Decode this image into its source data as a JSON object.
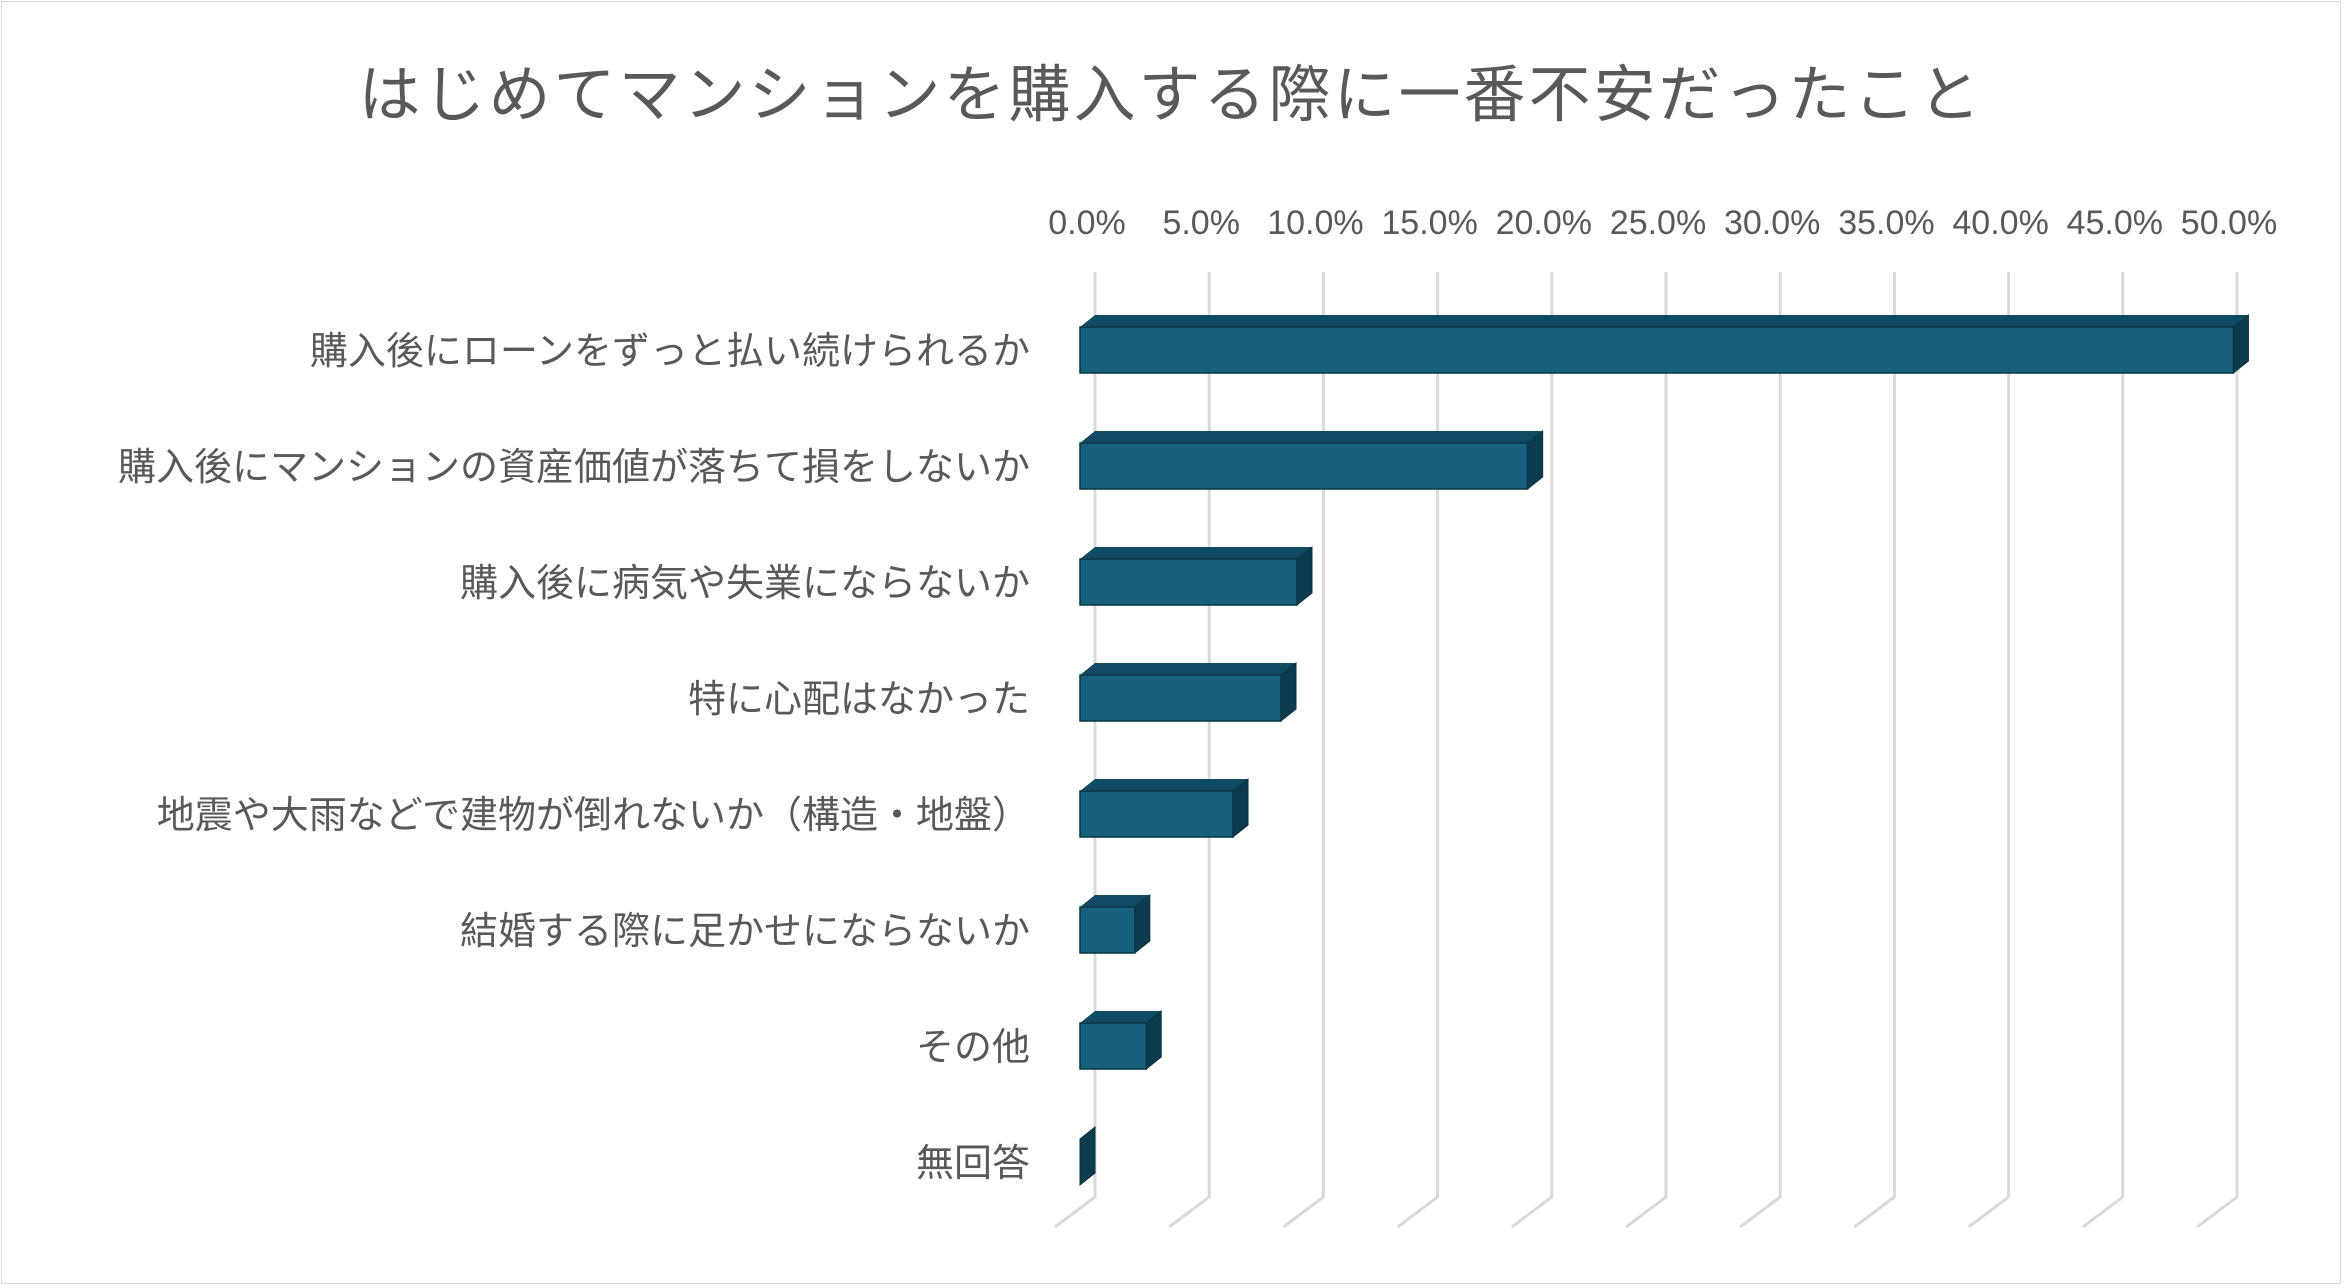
{
  "chart_data": {
    "type": "bar",
    "orientation": "horizontal",
    "style": "3d",
    "title": "はじめてマンションを購入する際に一番不安だったこと",
    "xlabel": "",
    "ylabel": "",
    "xlim": [
      0,
      50
    ],
    "tick_step": 5,
    "x_ticks": [
      "0.0%",
      "5.0%",
      "10.0%",
      "15.0%",
      "20.0%",
      "25.0%",
      "30.0%",
      "35.0%",
      "40.0%",
      "45.0%",
      "50.0%"
    ],
    "axis_position": "top",
    "grid": true,
    "legend": false,
    "categories": [
      "購入後にローンをずっと払い続けられるか",
      "購入後にマンションの資産価値が落ちて損をしないか",
      "購入後に病気や失業にならないか",
      "特に心配はなかった",
      "地震や大雨などで建物が倒れないか（構造・地盤）",
      "結婚する際に足かせにならないか",
      "その他",
      "無回答"
    ],
    "values": [
      50.5,
      19.6,
      9.5,
      8.8,
      6.7,
      2.4,
      2.9,
      0.0
    ],
    "colors": {
      "bar_front": "#17607e",
      "bar_top": "#0f4a62",
      "bar_side": "#0c3b4e",
      "bar_edge": "#0a3444",
      "grid": "#d9d9d9",
      "text": "#595959"
    }
  }
}
